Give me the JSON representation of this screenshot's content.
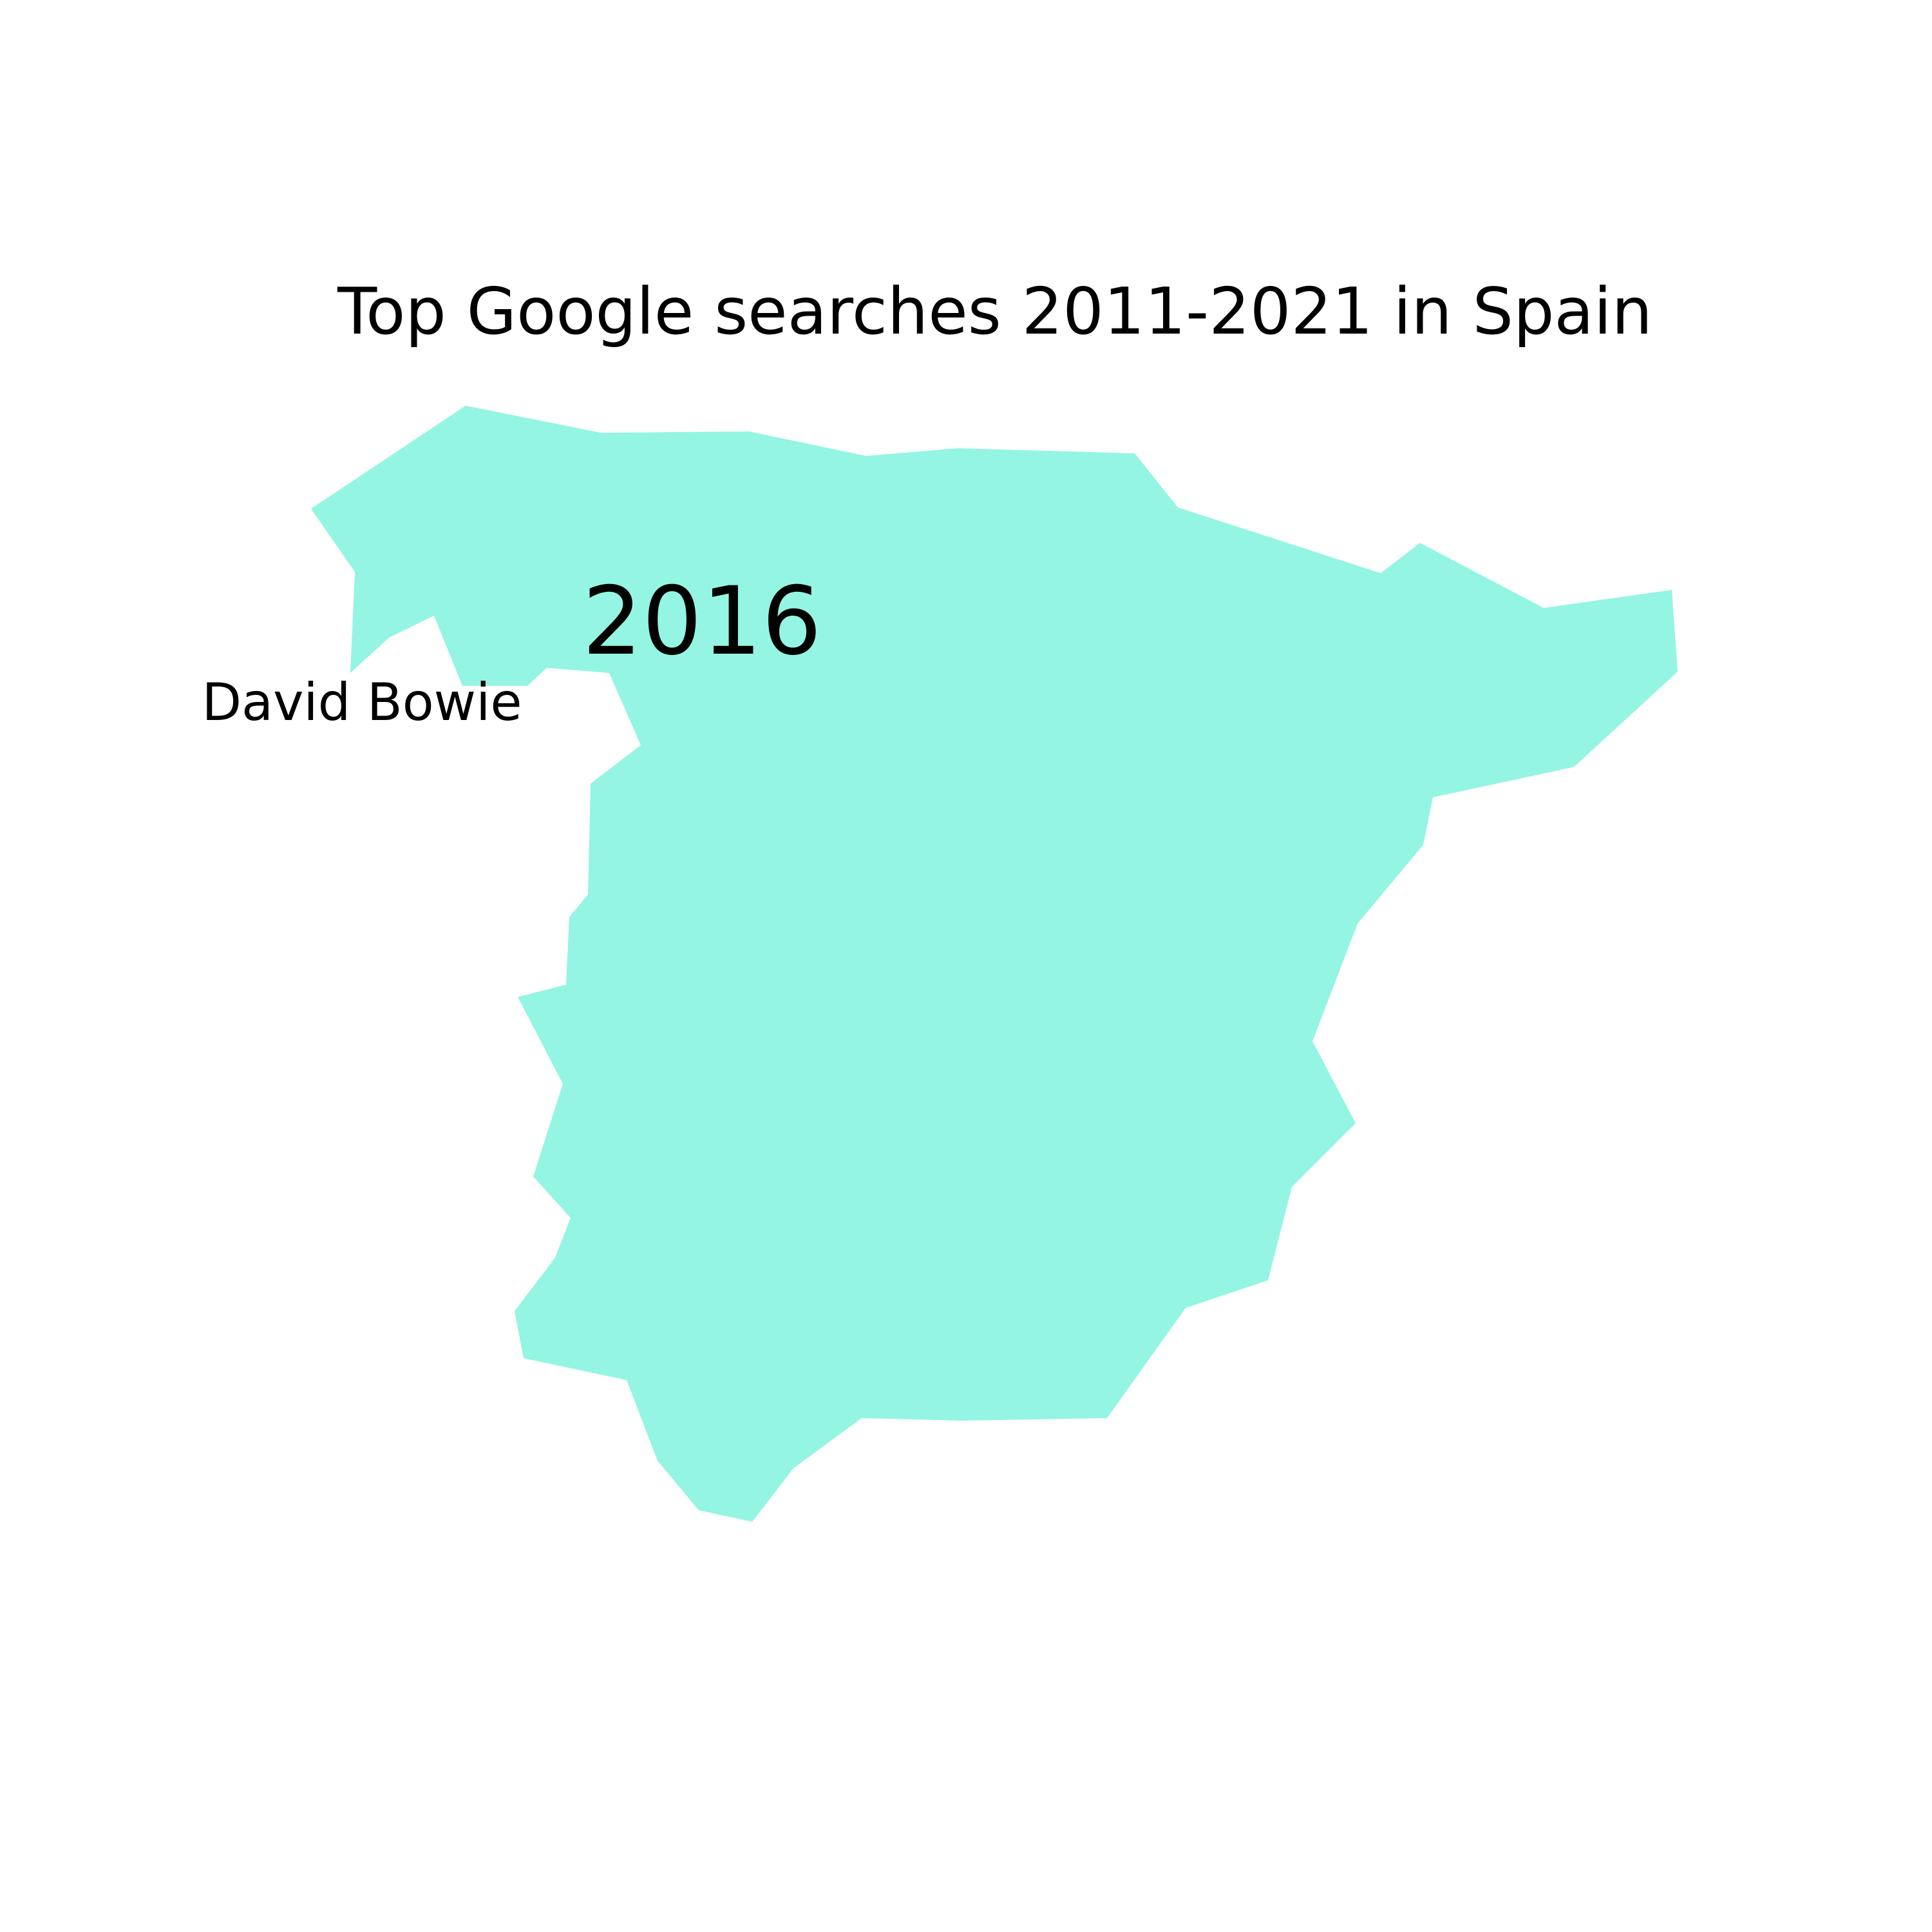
{
  "map": {
    "title": "Top Google searches 2011-2021 in Spain",
    "year": "2016",
    "top_search": "David Bowie",
    "region": "Spain",
    "fill_color": "#93f5e2"
  }
}
